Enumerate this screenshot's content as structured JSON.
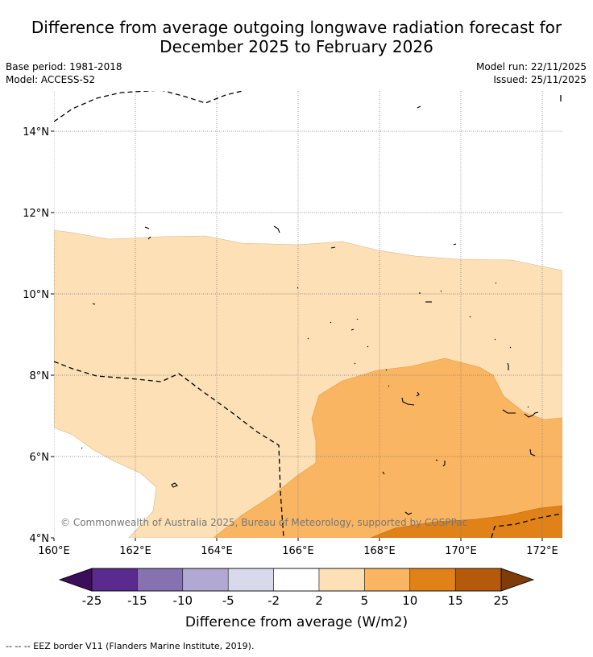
{
  "title": {
    "line1": "Difference from average outgoing longwave radiation forecast for",
    "line2": "December 2025 to February 2026"
  },
  "meta": {
    "base_period": "Base period: 1981-2018",
    "model": "Model: ACCESS-S2",
    "model_run": "Model run: 22/11/2025",
    "issued": "Issued: 25/11/2025"
  },
  "map": {
    "lon_labels": [
      "160°E",
      "162°E",
      "164°E",
      "166°E",
      "168°E",
      "170°E",
      "172°E"
    ],
    "lat_labels": [
      "14°N",
      "12°N",
      "10°N",
      "8°N",
      "6°N",
      "4°N"
    ],
    "copyright": "© Commonwealth of Australia 2025, Bureau of Meteorology, supported by COSPPac"
  },
  "colorbar": {
    "ticks": [
      "-25",
      "-15",
      "-10",
      "-5",
      "-2",
      "2",
      "5",
      "10",
      "15",
      "25"
    ],
    "colors": [
      "#5a2a8f",
      "#8672b0",
      "#b1a8d3",
      "#d9d9ec",
      "#ffffff",
      "#fde0b6",
      "#fab562",
      "#e08218",
      "#b55a0b"
    ],
    "under_color": "#3c0d58",
    "over_color": "#7f3c0a",
    "label": "Difference from average (W/m2)"
  },
  "legend": {
    "eez": "--  --  -- EEZ border V11 (Flanders Marine Institute, 2019)."
  }
}
